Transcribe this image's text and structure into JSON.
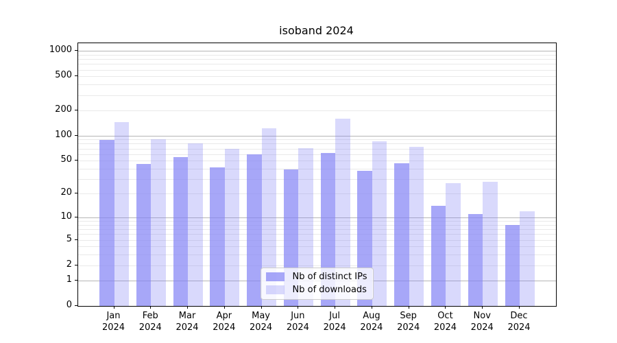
{
  "chart_data": {
    "type": "bar",
    "title": "isoband 2024",
    "categories": [
      {
        "month": "Jan",
        "year": "2024"
      },
      {
        "month": "Feb",
        "year": "2024"
      },
      {
        "month": "Mar",
        "year": "2024"
      },
      {
        "month": "Apr",
        "year": "2024"
      },
      {
        "month": "May",
        "year": "2024"
      },
      {
        "month": "Jun",
        "year": "2024"
      },
      {
        "month": "Jul",
        "year": "2024"
      },
      {
        "month": "Aug",
        "year": "2024"
      },
      {
        "month": "Sep",
        "year": "2024"
      },
      {
        "month": "Oct",
        "year": "2024"
      },
      {
        "month": "Nov",
        "year": "2024"
      },
      {
        "month": "Dec",
        "year": "2024"
      }
    ],
    "series": [
      {
        "name": "Nb of distinct IPs",
        "color": "rgba(130,130,245,0.7)",
        "values": [
          88,
          46,
          55,
          42,
          60,
          39,
          62,
          38,
          47,
          14,
          11,
          8
        ]
      },
      {
        "name": "Nb of downloads",
        "color": "rgba(130,130,245,0.3)",
        "values": [
          145,
          90,
          81,
          70,
          122,
          71,
          158,
          85,
          74,
          27,
          28,
          12
        ]
      }
    ],
    "yscale": "log1p",
    "ylim": [
      0,
      1230
    ],
    "yticks": [
      0,
      1,
      2,
      5,
      10,
      20,
      50,
      100,
      200,
      500,
      1000
    ],
    "major_gridlines": [
      1,
      10,
      100,
      1000
    ],
    "minor_gridline_decades": [
      1,
      10,
      100
    ],
    "grid": true,
    "legend_position": "lower center"
  },
  "colors": {
    "major_grid": "#b5b5b5",
    "minor_grid": "#e9e9e9",
    "spine": "#000000",
    "legend_border": "#cccccc",
    "legend_background": "rgba(255,255,255,0.8)"
  }
}
